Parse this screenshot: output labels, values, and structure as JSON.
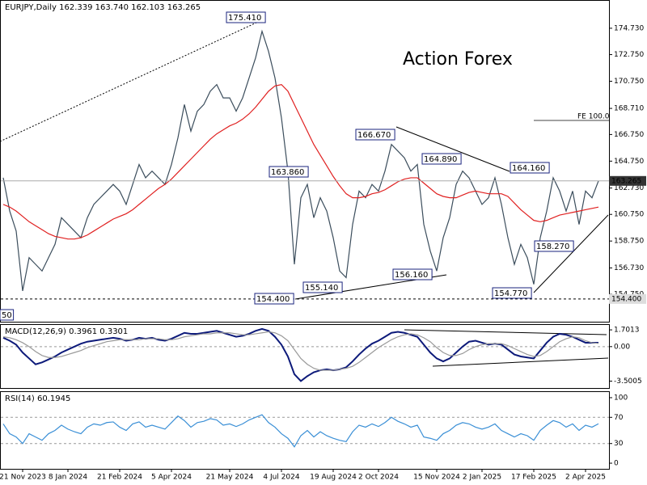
{
  "chart_data": [
    {
      "type": "line",
      "title": "EURJPY,Daily  162.339 163.740 162.103 163.265",
      "watermark": "Action Forex",
      "fe_label": "FE 100.0",
      "categories": [
        null,
        null,
        null,
        "21 Nov 2023",
        null,
        null,
        null,
        null,
        null,
        null,
        "8 Jan 2024",
        null,
        null,
        null,
        null,
        null,
        null,
        null,
        "21 Feb 2024",
        null,
        null,
        null,
        null,
        null,
        null,
        null,
        "5 Apr 2024",
        null,
        null,
        null,
        null,
        null,
        null,
        null,
        null,
        "21 May 2024",
        null,
        null,
        null,
        null,
        null,
        null,
        null,
        "4 Jul 2024",
        null,
        null,
        null,
        null,
        null,
        null,
        null,
        "19 Aug 2024",
        null,
        null,
        null,
        null,
        null,
        null,
        "2 Oct 2024",
        null,
        null,
        null,
        null,
        null,
        null,
        null,
        null,
        "15 Nov 2024",
        null,
        null,
        null,
        null,
        null,
        null,
        "2 Jan 2025",
        null,
        null,
        null,
        null,
        null,
        null,
        null,
        "17 Feb 2025",
        null,
        null,
        null,
        null,
        null,
        null,
        null,
        "2 Apr 2025",
        null,
        null
      ],
      "series": [
        {
          "name": "EURJPY",
          "color": "#3b4d5c",
          "values": [
            163.5,
            161.0,
            159.5,
            155.0,
            157.5,
            157.0,
            156.5,
            157.5,
            158.5,
            160.5,
            160.0,
            159.5,
            159.0,
            160.5,
            161.5,
            162.0,
            162.5,
            163.0,
            162.5,
            161.5,
            163.0,
            164.5,
            163.5,
            164.0,
            163.5,
            163.0,
            164.5,
            166.5,
            169.0,
            167.0,
            168.5,
            169.0,
            170.0,
            170.5,
            169.5,
            169.5,
            168.5,
            169.5,
            171.0,
            172.5,
            174.5,
            173.0,
            171.0,
            168.0,
            164.0,
            157.0,
            162.0,
            163.0,
            160.5,
            162.0,
            161.0,
            159.0,
            156.5,
            156.0,
            160.0,
            162.5,
            162.0,
            163.0,
            162.5,
            164.0,
            166.0,
            165.5,
            165.0,
            164.0,
            164.5,
            160.0,
            158.0,
            156.5,
            159.0,
            160.5,
            163.0,
            164.0,
            163.5,
            162.5,
            161.5,
            162.0,
            163.5,
            161.5,
            159.0,
            157.0,
            158.5,
            157.5,
            155.5,
            159.0,
            161.0,
            163.5,
            162.5,
            161.0,
            162.5,
            160.0,
            162.5,
            162.0,
            163.265
          ]
        },
        {
          "name": "MA",
          "color": "#e02020",
          "values": [
            161.5,
            161.3,
            161.0,
            160.6,
            160.2,
            159.9,
            159.6,
            159.3,
            159.1,
            159.0,
            158.9,
            158.9,
            159.0,
            159.2,
            159.5,
            159.8,
            160.1,
            160.4,
            160.6,
            160.8,
            161.1,
            161.5,
            161.9,
            162.3,
            162.7,
            163.0,
            163.4,
            163.9,
            164.4,
            164.9,
            165.4,
            165.9,
            166.4,
            166.8,
            167.1,
            167.4,
            167.6,
            167.9,
            168.3,
            168.8,
            169.4,
            170.0,
            170.4,
            170.5,
            170.0,
            169.0,
            168.0,
            167.0,
            166.0,
            165.2,
            164.4,
            163.6,
            162.9,
            162.3,
            162.0,
            162.0,
            162.1,
            162.3,
            162.4,
            162.6,
            162.9,
            163.2,
            163.4,
            163.5,
            163.5,
            163.1,
            162.7,
            162.3,
            162.1,
            162.0,
            162.0,
            162.2,
            162.4,
            162.5,
            162.4,
            162.3,
            162.3,
            162.3,
            162.1,
            161.6,
            161.1,
            160.7,
            160.3,
            160.2,
            160.3,
            160.5,
            160.7,
            160.8,
            160.9,
            161.0,
            161.1,
            161.2,
            161.3
          ]
        }
      ],
      "annotations": [
        "175.410",
        "163.860",
        "166.670",
        "164.890",
        "164.160",
        "155.140",
        "156.160",
        "154.400",
        "154.770",
        "158.270",
        "50"
      ],
      "markers": [
        {
          "value": 163.265,
          "label": "163.265"
        },
        {
          "value": 154.4,
          "label": "154.400"
        }
      ],
      "ylim": [
        152.69,
        176.79
      ],
      "yticks": [
        {
          "value": 174.73,
          "label": "174.730"
        },
        {
          "value": 172.75,
          "label": "172.750"
        },
        {
          "value": 170.75,
          "label": "170.750"
        },
        {
          "value": 168.71,
          "label": "168.710"
        },
        {
          "value": 166.75,
          "label": "166.750"
        },
        {
          "value": 164.75,
          "label": "164.750"
        },
        {
          "value": 162.73,
          "label": "162.730"
        },
        {
          "value": 160.75,
          "label": "160.750"
        },
        {
          "value": 158.75,
          "label": "158.750"
        },
        {
          "value": 156.73,
          "label": "156.730"
        },
        {
          "value": 154.75,
          "label": "154.750"
        }
      ]
    },
    {
      "type": "line",
      "title": "MACD(12,26,9) 0.3961 0.3301",
      "series": [
        {
          "name": "MACD",
          "color": "#0d1a7a",
          "values": [
            0.9,
            0.6,
            0.2,
            -0.6,
            -1.2,
            -1.8,
            -1.6,
            -1.3,
            -1.0,
            -0.6,
            -0.3,
            0,
            0.3,
            0.5,
            0.6,
            0.7,
            0.8,
            0.9,
            0.8,
            0.6,
            0.7,
            0.9,
            0.8,
            0.9,
            0.7,
            0.6,
            0.8,
            1.1,
            1.4,
            1.3,
            1.3,
            1.4,
            1.5,
            1.6,
            1.4,
            1.2,
            1.0,
            1.1,
            1.3,
            1.6,
            1.8,
            1.6,
            1.0,
            0.2,
            -1.0,
            -2.8,
            -3.5,
            -3.0,
            -2.6,
            -2.4,
            -2.3,
            -2.4,
            -2.3,
            -2.1,
            -1.5,
            -0.8,
            -0.2,
            0.3,
            0.6,
            1.0,
            1.4,
            1.5,
            1.4,
            1.2,
            1.0,
            0.2,
            -0.6,
            -1.2,
            -1.5,
            -1.2,
            -0.6,
            0,
            0.5,
            0.6,
            0.4,
            0.2,
            0.3,
            0.2,
            -0.3,
            -0.8,
            -1.0,
            -1.1,
            -1.2,
            -0.4,
            0.4,
            1.0,
            1.3,
            1.2,
            1.0,
            0.7,
            0.4,
            0.4,
            0.3961
          ]
        },
        {
          "name": "Signal",
          "color": "#999999",
          "values": [
            1.0,
            0.9,
            0.7,
            0.4,
            0,
            -0.5,
            -0.9,
            -1.1,
            -1.1,
            -1.0,
            -0.8,
            -0.6,
            -0.4,
            -0.1,
            0.1,
            0.3,
            0.5,
            0.6,
            0.7,
            0.7,
            0.7,
            0.7,
            0.8,
            0.8,
            0.8,
            0.7,
            0.7,
            0.8,
            1.0,
            1.1,
            1.2,
            1.3,
            1.3,
            1.4,
            1.4,
            1.4,
            1.3,
            1.2,
            1.2,
            1.3,
            1.4,
            1.5,
            1.4,
            1.1,
            0.6,
            -0.3,
            -1.2,
            -1.8,
            -2.2,
            -2.4,
            -2.4,
            -2.4,
            -2.3,
            -2.2,
            -2.0,
            -1.6,
            -1.1,
            -0.6,
            -0.1,
            0.3,
            0.7,
            1.0,
            1.2,
            1.3,
            1.2,
            0.9,
            0.5,
            -0.1,
            -0.6,
            -0.9,
            -0.9,
            -0.7,
            -0.3,
            0,
            0.2,
            0.3,
            0.3,
            0.3,
            0.1,
            -0.2,
            -0.5,
            -0.8,
            -1.0,
            -0.9,
            -0.5,
            0,
            0.5,
            0.8,
            1.0,
            0.9,
            0.6,
            0.4,
            0.3301
          ]
        }
      ],
      "ylim": [
        -4.2,
        2.2
      ],
      "yticks": [
        1.7013,
        {
          "value": 0,
          "label": "0.00"
        },
        -3.5005
      ],
      "dashed": [
        0
      ]
    },
    {
      "type": "line",
      "title": "RSI(14) 60.1945",
      "series": [
        {
          "name": "RSI",
          "color": "#3a8fd6",
          "values": [
            60,
            45,
            40,
            30,
            45,
            40,
            35,
            45,
            50,
            58,
            52,
            48,
            45,
            55,
            60,
            58,
            62,
            63,
            55,
            50,
            60,
            63,
            55,
            58,
            55,
            52,
            62,
            72,
            65,
            55,
            62,
            64,
            68,
            66,
            58,
            60,
            56,
            60,
            66,
            70,
            74,
            62,
            55,
            45,
            38,
            25,
            42,
            50,
            40,
            48,
            42,
            38,
            35,
            33,
            48,
            58,
            55,
            60,
            56,
            62,
            70,
            64,
            60,
            55,
            58,
            40,
            38,
            35,
            45,
            50,
            58,
            62,
            60,
            55,
            52,
            55,
            60,
            50,
            45,
            40,
            45,
            42,
            35,
            50,
            58,
            65,
            62,
            55,
            60,
            50,
            58,
            55,
            60.1945
          ]
        }
      ],
      "ylim": [
        -8.6,
        108.6
      ],
      "yticks": [
        100,
        70,
        30,
        0
      ],
      "dashed": [
        70,
        30
      ]
    }
  ]
}
